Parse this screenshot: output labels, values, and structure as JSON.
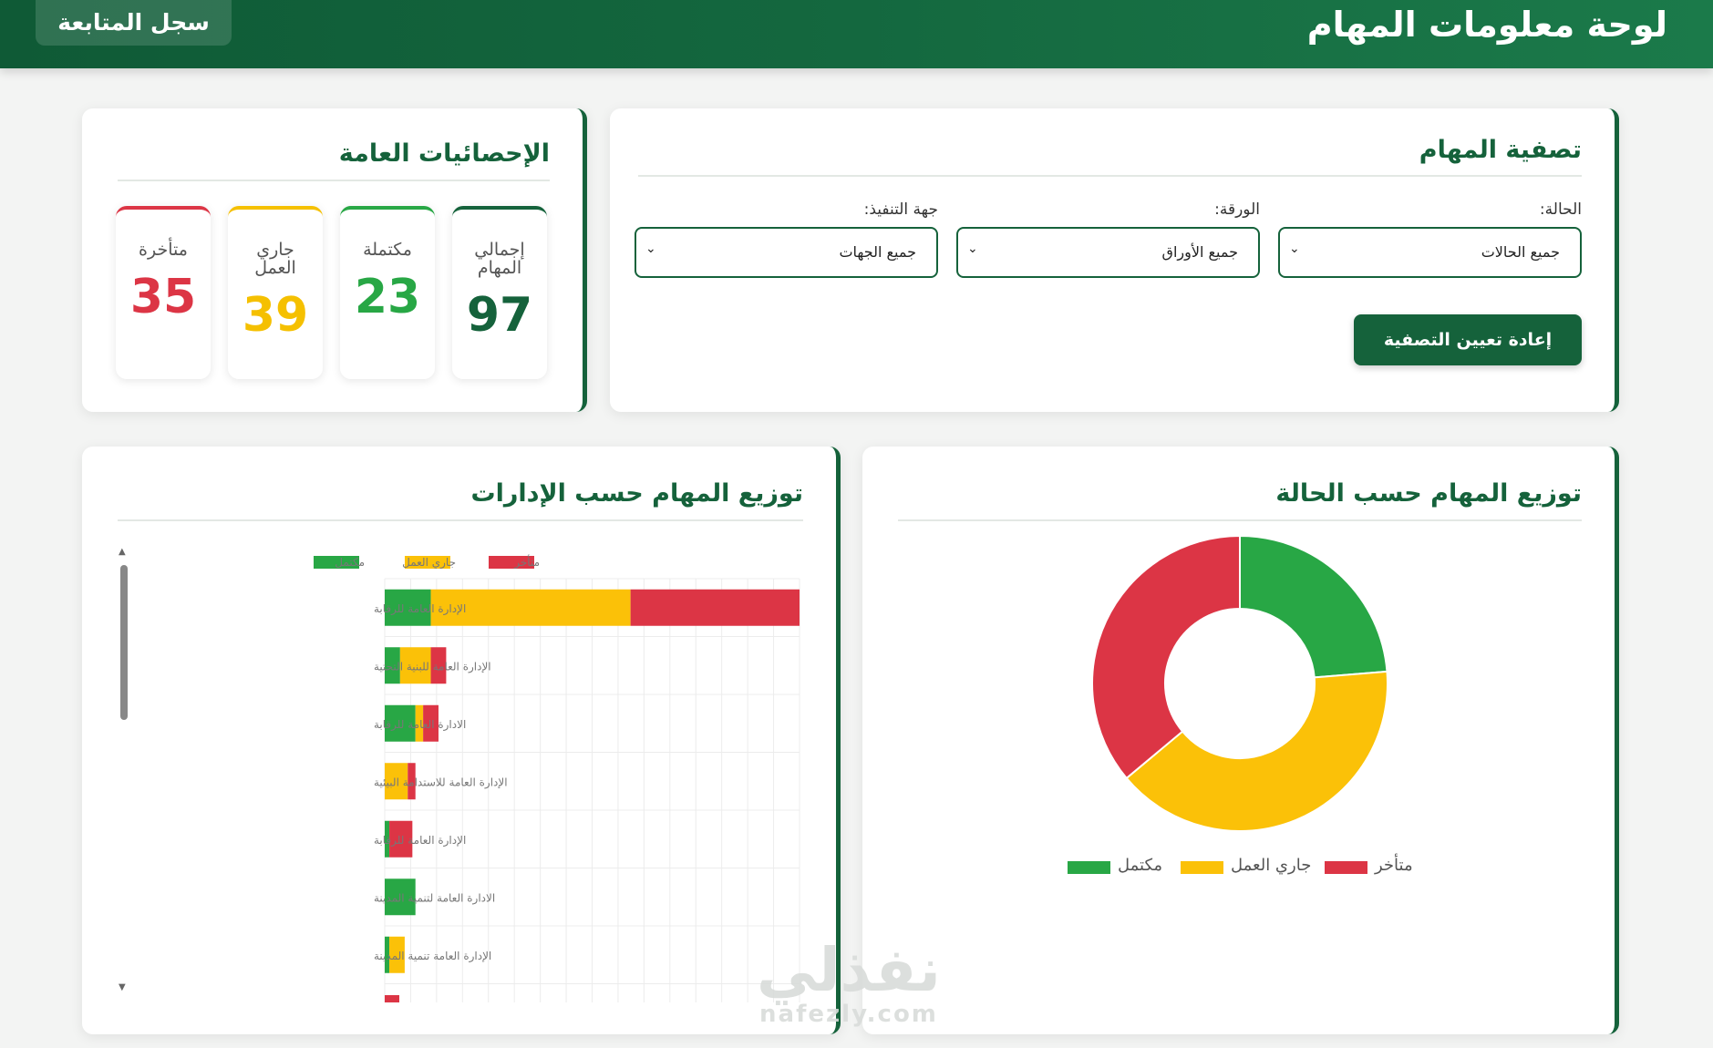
{
  "header": {
    "title": "لوحة معلومات المهام",
    "log_button": "سجل المتابعة"
  },
  "filters": {
    "title": "تصفية المهام",
    "status_label": "الحالة:",
    "status_value": "جميع الحالات",
    "paper_label": "الورقة:",
    "paper_value": "جميع الأوراق",
    "entity_label": "جهة التنفيذ:",
    "entity_value": "جميع الجهات",
    "reset_label": "إعادة تعيين التصفية"
  },
  "stats": {
    "title": "الإحصائيات العامة",
    "items": [
      {
        "label": "إجمالي المهام",
        "value": "97",
        "color": "#15623b"
      },
      {
        "label": "مكتملة",
        "value": "23",
        "color": "#28a745"
      },
      {
        "label": "جاري العمل",
        "value": "39",
        "color": "#f5c000"
      },
      {
        "label": "متأخرة",
        "value": "35",
        "color": "#dc3545"
      }
    ]
  },
  "colors": {
    "completed": "#28a745",
    "in_progress": "#fbc108",
    "late": "#dc3545",
    "brand": "#15623b"
  },
  "bar_chart_title": "توزيع المهام حسب الإدارات",
  "donut_chart_title": "توزيع المهام حسب الحالة",
  "chart_data": [
    {
      "type": "bar",
      "orientation": "horizontal",
      "stacked": true,
      "legend": "top",
      "grid": true,
      "categories": [
        "الإدارة العامة للرقابة",
        "الإدارة العامة للبنية التحتية",
        "الادارة العامة للرقابة",
        "الإدارة العامة للاستدامة البيئية",
        "الإدارة العامة للرقابة",
        "الادارة العامة لتنمية المدينة",
        "الإدارة العامة تنمية المدينة"
      ],
      "series": [
        {
          "name": "مكتمل",
          "values": [
            3,
            1,
            2,
            0,
            0.3,
            2,
            0.3
          ]
        },
        {
          "name": "جاري العمل",
          "values": [
            13,
            2,
            0.5,
            1.5,
            0,
            0,
            1
          ]
        },
        {
          "name": "متأخر",
          "values": [
            11,
            1,
            1,
            0.5,
            1.5,
            0,
            0
          ]
        }
      ],
      "xlim": [
        0,
        27
      ]
    },
    {
      "type": "pie",
      "donut": true,
      "legend": "bottom",
      "categories": [
        "مكتمل",
        "جاري العمل",
        "متأخر"
      ],
      "values": [
        23,
        39,
        35
      ]
    }
  ]
}
